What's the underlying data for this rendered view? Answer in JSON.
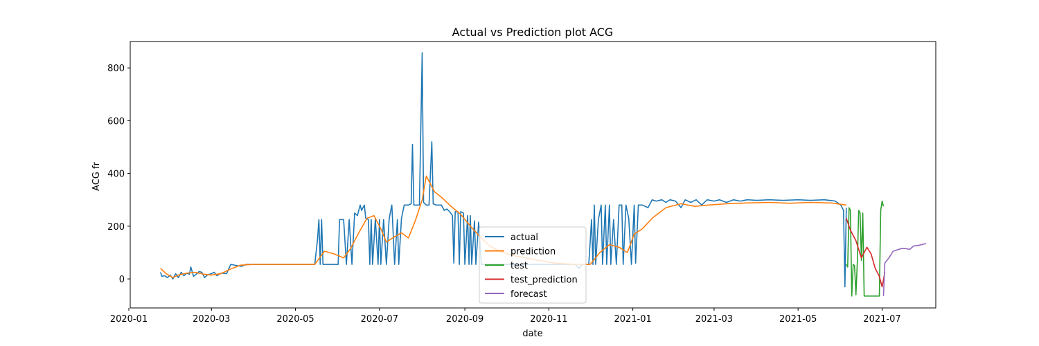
{
  "chart_data": {
    "type": "line",
    "title": "Actual vs Prediction plot ACG",
    "xlabel": "date",
    "ylabel": "ACG fr",
    "xlim": [
      "2020-01-02",
      "2021-08-09"
    ],
    "ylim": [
      -110,
      900
    ],
    "x_ticks": [
      "2020-01",
      "2020-03",
      "2020-05",
      "2020-07",
      "2020-09",
      "2020-11",
      "2021-01",
      "2021-03",
      "2021-05",
      "2021-07"
    ],
    "y_ticks": [
      0,
      200,
      400,
      600,
      800
    ],
    "grid": false,
    "legend_position": "lower-center",
    "series": [
      {
        "name": "actual",
        "color": "#1f77b4",
        "points": [
          [
            "2020-01-24",
            25
          ],
          [
            "2020-01-25",
            10
          ],
          [
            "2020-01-27",
            12
          ],
          [
            "2020-01-29",
            5
          ],
          [
            "2020-01-31",
            15
          ],
          [
            "2020-02-02",
            0
          ],
          [
            "2020-02-04",
            20
          ],
          [
            "2020-02-06",
            5
          ],
          [
            "2020-02-08",
            25
          ],
          [
            "2020-02-10",
            12
          ],
          [
            "2020-02-12",
            22
          ],
          [
            "2020-02-14",
            18
          ],
          [
            "2020-02-15",
            45
          ],
          [
            "2020-02-17",
            10
          ],
          [
            "2020-02-19",
            18
          ],
          [
            "2020-02-21",
            28
          ],
          [
            "2020-02-23",
            25
          ],
          [
            "2020-02-25",
            5
          ],
          [
            "2020-02-27",
            15
          ],
          [
            "2020-03-01",
            20
          ],
          [
            "2020-03-03",
            25
          ],
          [
            "2020-03-05",
            12
          ],
          [
            "2020-03-08",
            22
          ],
          [
            "2020-03-12",
            20
          ],
          [
            "2020-03-15",
            55
          ],
          [
            "2020-03-20",
            50
          ],
          [
            "2020-03-23",
            48
          ],
          [
            "2020-03-26",
            55
          ],
          [
            "2020-04-01",
            55
          ],
          [
            "2020-04-05",
            55
          ],
          [
            "2020-04-10",
            55
          ],
          [
            "2020-04-20",
            55
          ],
          [
            "2020-05-01",
            55
          ],
          [
            "2020-05-10",
            55
          ],
          [
            "2020-05-15",
            55
          ],
          [
            "2020-05-17",
            150
          ],
          [
            "2020-05-18",
            225
          ],
          [
            "2020-05-19",
            55
          ],
          [
            "2020-05-20",
            225
          ],
          [
            "2020-05-21",
            55
          ],
          [
            "2020-05-24",
            55
          ],
          [
            "2020-05-28",
            55
          ],
          [
            "2020-06-01",
            55
          ],
          [
            "2020-06-02",
            225
          ],
          [
            "2020-06-05",
            225
          ],
          [
            "2020-06-07",
            55
          ],
          [
            "2020-06-09",
            225
          ],
          [
            "2020-06-11",
            55
          ],
          [
            "2020-06-13",
            250
          ],
          [
            "2020-06-15",
            240
          ],
          [
            "2020-06-17",
            280
          ],
          [
            "2020-06-18",
            260
          ],
          [
            "2020-06-20",
            280
          ],
          [
            "2020-06-21",
            230
          ],
          [
            "2020-06-23",
            225
          ],
          [
            "2020-06-24",
            55
          ],
          [
            "2020-06-25",
            225
          ],
          [
            "2020-06-26",
            55
          ],
          [
            "2020-06-28",
            230
          ],
          [
            "2020-06-30",
            55
          ],
          [
            "2020-07-01",
            225
          ],
          [
            "2020-07-02",
            55
          ],
          [
            "2020-07-04",
            225
          ],
          [
            "2020-07-06",
            55
          ],
          [
            "2020-07-08",
            225
          ],
          [
            "2020-07-09",
            255
          ],
          [
            "2020-07-10",
            280
          ],
          [
            "2020-07-12",
            55
          ],
          [
            "2020-07-14",
            225
          ],
          [
            "2020-07-15",
            55
          ],
          [
            "2020-07-17",
            230
          ],
          [
            "2020-07-19",
            280
          ],
          [
            "2020-07-20",
            280
          ],
          [
            "2020-07-22",
            280
          ],
          [
            "2020-07-24",
            285
          ],
          [
            "2020-07-25",
            510
          ],
          [
            "2020-07-26",
            280
          ],
          [
            "2020-07-28",
            280
          ],
          [
            "2020-07-30",
            280
          ],
          [
            "2020-08-01",
            858
          ],
          [
            "2020-08-02",
            290
          ],
          [
            "2020-08-04",
            280
          ],
          [
            "2020-08-06",
            280
          ],
          [
            "2020-08-08",
            520
          ],
          [
            "2020-08-09",
            285
          ],
          [
            "2020-08-11",
            280
          ],
          [
            "2020-08-13",
            280
          ],
          [
            "2020-08-15",
            280
          ],
          [
            "2020-08-17",
            260
          ],
          [
            "2020-08-19",
            265
          ],
          [
            "2020-08-21",
            255
          ],
          [
            "2020-08-23",
            240
          ],
          [
            "2020-08-24",
            60
          ],
          [
            "2020-08-25",
            255
          ],
          [
            "2020-08-27",
            255
          ],
          [
            "2020-08-28",
            55
          ],
          [
            "2020-08-29",
            255
          ],
          [
            "2020-08-31",
            250
          ],
          [
            "2020-09-01",
            55
          ],
          [
            "2020-09-03",
            240
          ],
          [
            "2020-09-04",
            55
          ],
          [
            "2020-09-05",
            240
          ],
          [
            "2020-09-06",
            55
          ],
          [
            "2020-09-08",
            220
          ],
          [
            "2020-09-09",
            55
          ],
          [
            "2020-09-11",
            215
          ],
          [
            "2020-09-13",
            55
          ],
          [
            "2020-09-15",
            55
          ],
          [
            "2020-09-17",
            55
          ],
          [
            "2020-09-20",
            55
          ],
          [
            "2020-09-25",
            55
          ],
          [
            "2020-10-01",
            55
          ],
          [
            "2020-10-10",
            55
          ],
          [
            "2020-10-20",
            55
          ],
          [
            "2020-11-01",
            55
          ],
          [
            "2020-11-10",
            55
          ],
          [
            "2020-11-20",
            55
          ],
          [
            "2020-11-23",
            40
          ],
          [
            "2020-11-25",
            55
          ],
          [
            "2020-11-27",
            55
          ],
          [
            "2020-11-30",
            55
          ],
          [
            "2020-12-02",
            225
          ],
          [
            "2020-12-03",
            55
          ],
          [
            "2020-12-04",
            280
          ],
          [
            "2020-12-05",
            55
          ],
          [
            "2020-12-07",
            225
          ],
          [
            "2020-12-09",
            280
          ],
          [
            "2020-12-10",
            55
          ],
          [
            "2020-12-12",
            280
          ],
          [
            "2020-12-13",
            55
          ],
          [
            "2020-12-15",
            280
          ],
          [
            "2020-12-16",
            55
          ],
          [
            "2020-12-18",
            225
          ],
          [
            "2020-12-20",
            55
          ],
          [
            "2020-12-22",
            280
          ],
          [
            "2020-12-24",
            280
          ],
          [
            "2020-12-25",
            55
          ],
          [
            "2020-12-27",
            280
          ],
          [
            "2020-12-29",
            230
          ],
          [
            "2020-12-31",
            55
          ],
          [
            "2021-01-02",
            280
          ],
          [
            "2021-01-03",
            60
          ],
          [
            "2021-01-05",
            280
          ],
          [
            "2021-01-08",
            280
          ],
          [
            "2021-01-12",
            270
          ],
          [
            "2021-01-15",
            300
          ],
          [
            "2021-01-18",
            295
          ],
          [
            "2021-01-22",
            300
          ],
          [
            "2021-01-25",
            290
          ],
          [
            "2021-01-28",
            300
          ],
          [
            "2021-02-01",
            295
          ],
          [
            "2021-02-05",
            270
          ],
          [
            "2021-02-08",
            300
          ],
          [
            "2021-02-12",
            290
          ],
          [
            "2021-02-16",
            300
          ],
          [
            "2021-02-20",
            280
          ],
          [
            "2021-02-24",
            300
          ],
          [
            "2021-03-01",
            295
          ],
          [
            "2021-03-05",
            300
          ],
          [
            "2021-03-10",
            290
          ],
          [
            "2021-03-15",
            300
          ],
          [
            "2021-03-20",
            295
          ],
          [
            "2021-03-25",
            300
          ],
          [
            "2021-04-01",
            298
          ],
          [
            "2021-04-10",
            300
          ],
          [
            "2021-04-20",
            298
          ],
          [
            "2021-05-01",
            300
          ],
          [
            "2021-05-10",
            298
          ],
          [
            "2021-05-20",
            300
          ],
          [
            "2021-05-28",
            295
          ],
          [
            "2021-06-01",
            280
          ],
          [
            "2021-06-03",
            260
          ],
          [
            "2021-06-04",
            -30
          ],
          [
            "2021-06-05",
            270
          ]
        ]
      },
      {
        "name": "prediction",
        "color": "#ff7f0e",
        "points": [
          [
            "2020-01-24",
            40
          ],
          [
            "2020-01-28",
            20
          ],
          [
            "2020-02-02",
            5
          ],
          [
            "2020-02-06",
            15
          ],
          [
            "2020-02-12",
            22
          ],
          [
            "2020-02-18",
            25
          ],
          [
            "2020-02-24",
            18
          ],
          [
            "2020-03-01",
            15
          ],
          [
            "2020-03-08",
            20
          ],
          [
            "2020-03-15",
            38
          ],
          [
            "2020-03-22",
            52
          ],
          [
            "2020-04-01",
            55
          ],
          [
            "2020-04-15",
            55
          ],
          [
            "2020-05-01",
            55
          ],
          [
            "2020-05-15",
            55
          ],
          [
            "2020-05-22",
            105
          ],
          [
            "2020-05-29",
            95
          ],
          [
            "2020-06-05",
            80
          ],
          [
            "2020-06-10",
            115
          ],
          [
            "2020-06-16",
            175
          ],
          [
            "2020-06-22",
            230
          ],
          [
            "2020-06-27",
            240
          ],
          [
            "2020-07-02",
            190
          ],
          [
            "2020-07-06",
            140
          ],
          [
            "2020-07-12",
            160
          ],
          [
            "2020-07-17",
            175
          ],
          [
            "2020-07-22",
            155
          ],
          [
            "2020-07-27",
            220
          ],
          [
            "2020-08-01",
            300
          ],
          [
            "2020-08-04",
            390
          ],
          [
            "2020-08-07",
            360
          ],
          [
            "2020-08-10",
            330
          ],
          [
            "2020-08-15",
            310
          ],
          [
            "2020-08-22",
            275
          ],
          [
            "2020-08-29",
            245
          ],
          [
            "2020-09-05",
            200
          ],
          [
            "2020-09-12",
            160
          ],
          [
            "2020-09-19",
            125
          ],
          [
            "2020-09-26",
            105
          ],
          [
            "2020-10-05",
            90
          ],
          [
            "2020-10-20",
            75
          ],
          [
            "2020-11-05",
            60
          ],
          [
            "2020-11-20",
            55
          ],
          [
            "2020-12-01",
            55
          ],
          [
            "2020-12-08",
            100
          ],
          [
            "2020-12-15",
            130
          ],
          [
            "2020-12-22",
            120
          ],
          [
            "2020-12-28",
            100
          ],
          [
            "2021-01-02",
            170
          ],
          [
            "2021-01-08",
            190
          ],
          [
            "2021-01-15",
            230
          ],
          [
            "2021-01-25",
            270
          ],
          [
            "2021-02-05",
            285
          ],
          [
            "2021-02-15",
            275
          ],
          [
            "2021-02-25",
            280
          ],
          [
            "2021-03-10",
            285
          ],
          [
            "2021-03-25",
            288
          ],
          [
            "2021-04-10",
            290
          ],
          [
            "2021-04-25",
            287
          ],
          [
            "2021-05-10",
            290
          ],
          [
            "2021-05-25",
            288
          ],
          [
            "2021-06-05",
            280
          ]
        ]
      },
      {
        "name": "test",
        "color": "#2ca02c",
        "points": [
          [
            "2021-06-05",
            55
          ],
          [
            "2021-06-06",
            45
          ],
          [
            "2021-06-07",
            270
          ],
          [
            "2021-06-08",
            260
          ],
          [
            "2021-06-09",
            -65
          ],
          [
            "2021-06-10",
            55
          ],
          [
            "2021-06-11",
            50
          ],
          [
            "2021-06-12",
            -60
          ],
          [
            "2021-06-13",
            60
          ],
          [
            "2021-06-14",
            260
          ],
          [
            "2021-06-15",
            250
          ],
          [
            "2021-06-16",
            70
          ],
          [
            "2021-06-17",
            250
          ],
          [
            "2021-06-18",
            -65
          ],
          [
            "2021-06-22",
            -65
          ],
          [
            "2021-06-26",
            -65
          ],
          [
            "2021-06-29",
            -65
          ],
          [
            "2021-06-30",
            260
          ],
          [
            "2021-07-01",
            295
          ],
          [
            "2021-07-02",
            275
          ]
        ]
      },
      {
        "name": "test_prediction",
        "color": "#d62728",
        "points": [
          [
            "2021-06-05",
            230
          ],
          [
            "2021-06-08",
            185
          ],
          [
            "2021-06-12",
            145
          ],
          [
            "2021-06-16",
            80
          ],
          [
            "2021-06-20",
            120
          ],
          [
            "2021-06-23",
            95
          ],
          [
            "2021-06-26",
            40
          ],
          [
            "2021-06-29",
            10
          ],
          [
            "2021-07-01",
            -30
          ],
          [
            "2021-07-03",
            25
          ]
        ]
      },
      {
        "name": "forecast",
        "color": "#9467bd",
        "points": [
          [
            "2021-07-02",
            -65
          ],
          [
            "2021-07-03",
            60
          ],
          [
            "2021-07-06",
            80
          ],
          [
            "2021-07-09",
            105
          ],
          [
            "2021-07-12",
            110
          ],
          [
            "2021-07-15",
            115
          ],
          [
            "2021-07-18",
            115
          ],
          [
            "2021-07-21",
            112
          ],
          [
            "2021-07-24",
            125
          ],
          [
            "2021-07-27",
            127
          ],
          [
            "2021-07-30",
            130
          ],
          [
            "2021-08-02",
            135
          ]
        ]
      }
    ]
  }
}
